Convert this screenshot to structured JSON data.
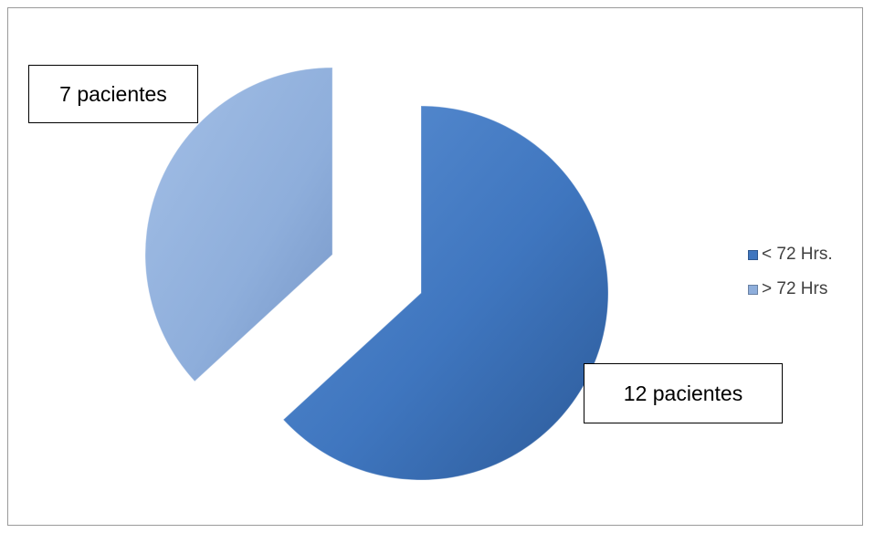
{
  "chart_data": {
    "type": "pie",
    "categories": [
      "< 72 Hrs.",
      "> 72 Hrs"
    ],
    "values": [
      12,
      7
    ],
    "data_labels": [
      "12 pacientes",
      "7 pacientes"
    ],
    "colors": [
      "#3f76bf",
      "#8eaedb"
    ],
    "exploded": true,
    "legend_position": "right",
    "title": ""
  }
}
